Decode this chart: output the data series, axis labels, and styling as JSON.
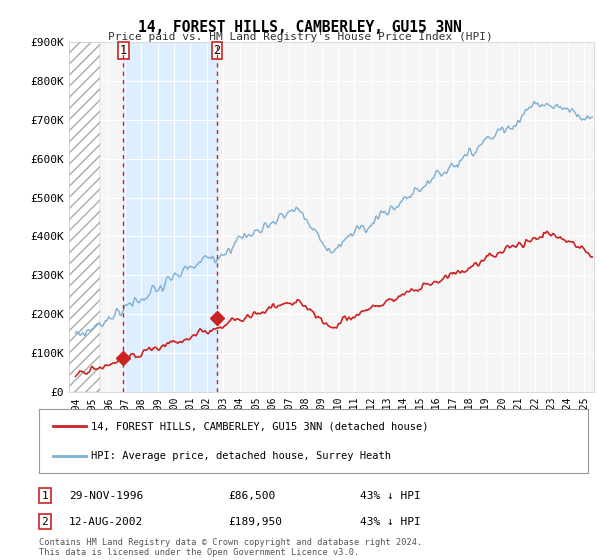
{
  "title": "14, FOREST HILLS, CAMBERLEY, GU15 3NN",
  "subtitle": "Price paid vs. HM Land Registry's House Price Index (HPI)",
  "ylim": [
    0,
    900000
  ],
  "yticks": [
    0,
    100000,
    200000,
    300000,
    400000,
    500000,
    600000,
    700000,
    800000,
    900000
  ],
  "ytick_labels": [
    "£0",
    "£100K",
    "£200K",
    "£300K",
    "£400K",
    "£500K",
    "£600K",
    "£700K",
    "£800K",
    "£900K"
  ],
  "xlim_start": 1993.6,
  "xlim_end": 2025.6,
  "hpi_color": "#7bafd4",
  "price_color": "#cc2222",
  "sale1_year": 1996.91,
  "sale1_price": 86500,
  "sale2_year": 2002.62,
  "sale2_price": 189950,
  "legend_line1": "14, FOREST HILLS, CAMBERLEY, GU15 3NN (detached house)",
  "legend_line2": "HPI: Average price, detached house, Surrey Heath",
  "table_row1_num": "1",
  "table_row1_date": "29-NOV-1996",
  "table_row1_price": "£86,500",
  "table_row1_hpi": "43% ↓ HPI",
  "table_row2_num": "2",
  "table_row2_date": "12-AUG-2002",
  "table_row2_price": "£189,950",
  "table_row2_hpi": "43% ↓ HPI",
  "footer": "Contains HM Land Registry data © Crown copyright and database right 2024.\nThis data is licensed under the Open Government Licence v3.0.",
  "background_color": "#ffffff",
  "plot_bg_color": "#f5f5f5",
  "hatch_end_year": 1995.5,
  "shade_start_year": 1996.91,
  "shade_end_year": 2002.62,
  "shade_color": "#ddeeff"
}
